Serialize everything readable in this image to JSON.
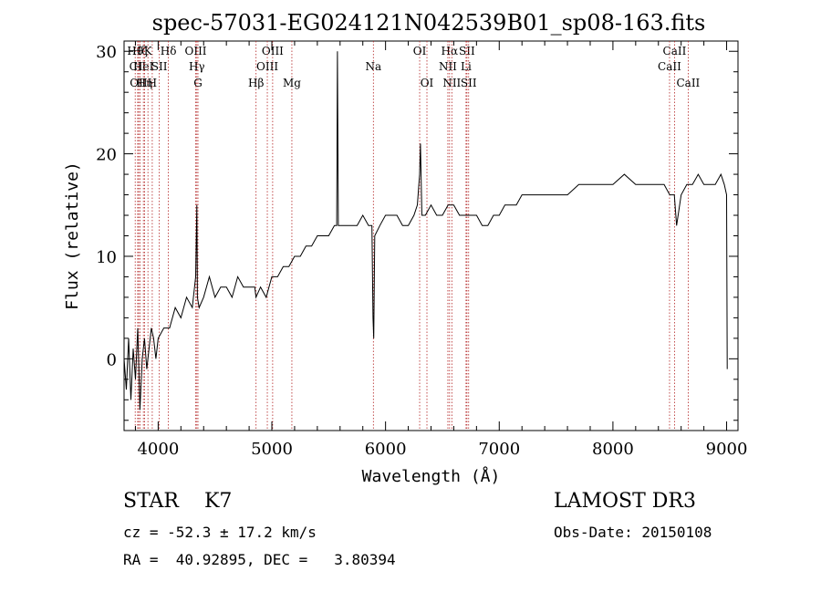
{
  "chart_data": {
    "type": "line",
    "title": "spec-57031-EG024121N042539B01_sp08-163.fits",
    "xlabel": "Wavelength (Å)",
    "ylabel": "Flux (relative)",
    "xlim": [
      3700,
      9100
    ],
    "ylim": [
      -7,
      31
    ],
    "xticks": [
      4000,
      5000,
      6000,
      7000,
      8000,
      9000
    ],
    "yticks": [
      0,
      10,
      20,
      30
    ],
    "grid": false,
    "series": [
      {
        "name": "flux",
        "x": [
          3700,
          3720,
          3740,
          3760,
          3780,
          3800,
          3820,
          3840,
          3860,
          3880,
          3900,
          3920,
          3940,
          3960,
          3980,
          4000,
          4050,
          4100,
          4150,
          4200,
          4250,
          4300,
          4330,
          4340,
          4345,
          4360,
          4400,
          4450,
          4500,
          4550,
          4600,
          4650,
          4700,
          4750,
          4800,
          4850,
          4860,
          4900,
          4950,
          5000,
          5050,
          5100,
          5150,
          5200,
          5250,
          5300,
          5350,
          5400,
          5450,
          5500,
          5550,
          5570,
          5577,
          5585,
          5600,
          5650,
          5700,
          5750,
          5800,
          5850,
          5880,
          5890,
          5896,
          5905,
          5950,
          6000,
          6050,
          6100,
          6150,
          6200,
          6250,
          6280,
          6300,
          6307,
          6320,
          6350,
          6400,
          6450,
          6500,
          6550,
          6580,
          6600,
          6650,
          6700,
          6750,
          6800,
          6850,
          6900,
          6950,
          7000,
          7050,
          7100,
          7150,
          7200,
          7300,
          7400,
          7500,
          7600,
          7700,
          7800,
          7900,
          8000,
          8100,
          8200,
          8300,
          8400,
          8450,
          8500,
          8540,
          8560,
          8600,
          8650,
          8700,
          8750,
          8800,
          8850,
          8900,
          8950,
          8980,
          9000,
          9005
        ],
        "y": [
          0,
          -3,
          2,
          -4,
          1,
          -2,
          3,
          -5,
          0,
          2,
          -1,
          1,
          3,
          2,
          0,
          2,
          3,
          3,
          5,
          4,
          6,
          5,
          8,
          15,
          6,
          5,
          6,
          8,
          6,
          7,
          7,
          6,
          8,
          7,
          7,
          7,
          6,
          7,
          6,
          8,
          8,
          9,
          9,
          10,
          10,
          11,
          11,
          12,
          12,
          12,
          13,
          13,
          30,
          13,
          13,
          13,
          13,
          13,
          14,
          13,
          13,
          4,
          2,
          12,
          13,
          14,
          14,
          14,
          13,
          13,
          14,
          15,
          18,
          21,
          14,
          14,
          15,
          14,
          14,
          15,
          15,
          15,
          14,
          14,
          14,
          14,
          13,
          13,
          14,
          14,
          15,
          15,
          15,
          16,
          16,
          16,
          16,
          16,
          17,
          17,
          17,
          17,
          18,
          17,
          17,
          17,
          17,
          16,
          16,
          13,
          16,
          17,
          17,
          18,
          17,
          17,
          17,
          18,
          17,
          16,
          -1
        ]
      }
    ],
    "lines": [
      {
        "label": "Hθ",
        "wave": 3798,
        "row": 1
      },
      {
        "label": "CII",
        "wave": 3820,
        "row": 2
      },
      {
        "label": "OII",
        "wave": 3828,
        "row": 3
      },
      {
        "label": "Hζ",
        "wave": 3840,
        "row": 1
      },
      {
        "label": "HeI",
        "wave": 3870,
        "row": 2
      },
      {
        "label": "Hη",
        "wave": 3880,
        "row": 3
      },
      {
        "label": "K",
        "wave": 3910,
        "row": 1
      },
      {
        "label": "H",
        "wave": 3948,
        "row": 3
      },
      {
        "label": "SII",
        "wave": 4010,
        "row": 2
      },
      {
        "label": "Hδ",
        "wave": 4090,
        "row": 1
      },
      {
        "label": "OIII",
        "wave": 4330,
        "row": 1
      },
      {
        "label": "Hγ",
        "wave": 4340,
        "row": 2
      },
      {
        "label": "G",
        "wave": 4350,
        "row": 3
      },
      {
        "label": "Hβ",
        "wave": 4861,
        "row": 3
      },
      {
        "label": "OIII",
        "wave": 5007,
        "row": 1
      },
      {
        "label": "OIII",
        "wave": 4960,
        "row": 2
      },
      {
        "label": "Mg",
        "wave": 5176,
        "row": 3
      },
      {
        "label": "Na",
        "wave": 5893,
        "row": 2
      },
      {
        "label": "OI",
        "wave": 6300,
        "row": 1
      },
      {
        "label": "OI",
        "wave": 6364,
        "row": 3
      },
      {
        "label": "Hα",
        "wave": 6563,
        "row": 1
      },
      {
        "label": "NII",
        "wave": 6548,
        "row": 2
      },
      {
        "label": "NII",
        "wave": 6583,
        "row": 3
      },
      {
        "label": "SII",
        "wave": 6716,
        "row": 1
      },
      {
        "label": "Li",
        "wave": 6708,
        "row": 2
      },
      {
        "label": "SII",
        "wave": 6731,
        "row": 3
      },
      {
        "label": "CaII",
        "wave": 8542,
        "row": 1
      },
      {
        "label": "CaII",
        "wave": 8498,
        "row": 2
      },
      {
        "label": "CaII",
        "wave": 8662,
        "row": 3
      }
    ]
  },
  "info": {
    "class_line": "STAR    K7",
    "survey": "LAMOST DR3",
    "cz": "cz = -52.3 ± 17.2 km/s",
    "obs_date": "Obs-Date: 20150108",
    "radec": "RA =  40.92895, DEC =   3.80394"
  },
  "colors": {
    "line_marker": "#b22222",
    "axes": "#000000"
  }
}
